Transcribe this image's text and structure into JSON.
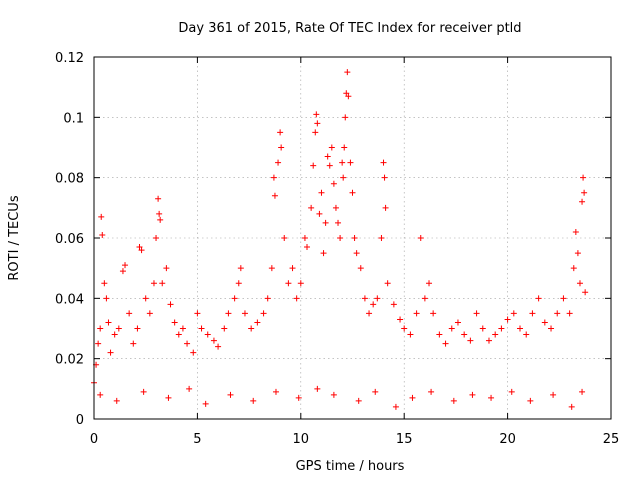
{
  "chart_data": {
    "type": "scatter",
    "title": "Day 361 of 2015, Rate Of TEC Index for receiver ptld",
    "xlabel": "GPS time / hours",
    "ylabel": "ROTI / TECUs",
    "xlim": [
      0,
      25
    ],
    "ylim": [
      0,
      0.12
    ],
    "xticks": [
      0,
      5,
      10,
      15,
      20,
      25
    ],
    "xtick_labels": [
      "0",
      "5",
      "10",
      "15",
      "20",
      "25"
    ],
    "yticks": [
      0,
      0.02,
      0.04,
      0.06,
      0.08,
      0.1,
      0.12
    ],
    "ytick_labels": [
      "0",
      "0.02",
      "0.04",
      "0.06",
      "0.08",
      "0.1",
      "0.12"
    ],
    "grid": true,
    "marker": "plus",
    "color": "#ff0000",
    "series": [
      {
        "name": "ROTI",
        "points": [
          [
            0.0,
            0.012
          ],
          [
            0.1,
            0.018
          ],
          [
            0.2,
            0.025
          ],
          [
            0.3,
            0.03
          ],
          [
            0.35,
            0.067
          ],
          [
            0.4,
            0.061
          ],
          [
            0.5,
            0.045
          ],
          [
            0.6,
            0.04
          ],
          [
            0.7,
            0.032
          ],
          [
            0.8,
            0.022
          ],
          [
            1.0,
            0.028
          ],
          [
            1.2,
            0.03
          ],
          [
            1.4,
            0.049
          ],
          [
            1.5,
            0.051
          ],
          [
            1.7,
            0.035
          ],
          [
            1.9,
            0.025
          ],
          [
            2.1,
            0.03
          ],
          [
            2.2,
            0.057
          ],
          [
            2.3,
            0.056
          ],
          [
            2.5,
            0.04
          ],
          [
            2.7,
            0.035
          ],
          [
            2.9,
            0.045
          ],
          [
            3.0,
            0.06
          ],
          [
            3.1,
            0.073
          ],
          [
            3.15,
            0.068
          ],
          [
            3.2,
            0.066
          ],
          [
            3.3,
            0.045
          ],
          [
            3.5,
            0.05
          ],
          [
            3.7,
            0.038
          ],
          [
            3.9,
            0.032
          ],
          [
            4.1,
            0.028
          ],
          [
            4.3,
            0.03
          ],
          [
            4.5,
            0.025
          ],
          [
            4.8,
            0.022
          ],
          [
            5.0,
            0.035
          ],
          [
            5.2,
            0.03
          ],
          [
            5.5,
            0.028
          ],
          [
            5.8,
            0.026
          ],
          [
            6.0,
            0.024
          ],
          [
            6.3,
            0.03
          ],
          [
            6.5,
            0.035
          ],
          [
            6.8,
            0.04
          ],
          [
            7.0,
            0.045
          ],
          [
            7.1,
            0.05
          ],
          [
            7.3,
            0.035
          ],
          [
            7.6,
            0.03
          ],
          [
            7.9,
            0.032
          ],
          [
            8.2,
            0.035
          ],
          [
            8.4,
            0.04
          ],
          [
            8.6,
            0.05
          ],
          [
            8.7,
            0.08
          ],
          [
            8.75,
            0.074
          ],
          [
            8.9,
            0.085
          ],
          [
            9.0,
            0.095
          ],
          [
            9.05,
            0.09
          ],
          [
            9.2,
            0.06
          ],
          [
            9.4,
            0.045
          ],
          [
            9.6,
            0.05
          ],
          [
            9.8,
            0.04
          ],
          [
            10.0,
            0.045
          ],
          [
            10.2,
            0.06
          ],
          [
            10.3,
            0.057
          ],
          [
            10.5,
            0.07
          ],
          [
            10.6,
            0.084
          ],
          [
            10.7,
            0.095
          ],
          [
            10.75,
            0.101
          ],
          [
            10.8,
            0.098
          ],
          [
            10.9,
            0.068
          ],
          [
            11.0,
            0.075
          ],
          [
            11.1,
            0.055
          ],
          [
            11.2,
            0.065
          ],
          [
            11.3,
            0.087
          ],
          [
            11.4,
            0.084
          ],
          [
            11.5,
            0.09
          ],
          [
            11.6,
            0.078
          ],
          [
            11.7,
            0.07
          ],
          [
            11.8,
            0.065
          ],
          [
            11.9,
            0.06
          ],
          [
            12.0,
            0.085
          ],
          [
            12.05,
            0.08
          ],
          [
            12.1,
            0.09
          ],
          [
            12.15,
            0.1
          ],
          [
            12.2,
            0.108
          ],
          [
            12.25,
            0.115
          ],
          [
            12.3,
            0.107
          ],
          [
            12.4,
            0.085
          ],
          [
            12.5,
            0.075
          ],
          [
            12.6,
            0.06
          ],
          [
            12.7,
            0.055
          ],
          [
            12.9,
            0.05
          ],
          [
            13.1,
            0.04
          ],
          [
            13.3,
            0.035
          ],
          [
            13.5,
            0.038
          ],
          [
            13.7,
            0.04
          ],
          [
            13.9,
            0.06
          ],
          [
            14.0,
            0.085
          ],
          [
            14.05,
            0.08
          ],
          [
            14.1,
            0.07
          ],
          [
            14.2,
            0.045
          ],
          [
            14.5,
            0.038
          ],
          [
            14.8,
            0.033
          ],
          [
            15.0,
            0.03
          ],
          [
            15.3,
            0.028
          ],
          [
            15.6,
            0.035
          ],
          [
            15.8,
            0.06
          ],
          [
            16.0,
            0.04
          ],
          [
            16.2,
            0.045
          ],
          [
            16.4,
            0.035
          ],
          [
            16.7,
            0.028
          ],
          [
            17.0,
            0.025
          ],
          [
            17.3,
            0.03
          ],
          [
            17.6,
            0.032
          ],
          [
            17.9,
            0.028
          ],
          [
            18.2,
            0.026
          ],
          [
            18.5,
            0.035
          ],
          [
            18.8,
            0.03
          ],
          [
            19.1,
            0.026
          ],
          [
            19.4,
            0.028
          ],
          [
            19.7,
            0.03
          ],
          [
            20.0,
            0.033
          ],
          [
            20.3,
            0.035
          ],
          [
            20.6,
            0.03
          ],
          [
            20.9,
            0.028
          ],
          [
            21.2,
            0.035
          ],
          [
            21.5,
            0.04
          ],
          [
            21.8,
            0.032
          ],
          [
            22.1,
            0.03
          ],
          [
            22.4,
            0.035
          ],
          [
            22.7,
            0.04
          ],
          [
            23.0,
            0.035
          ],
          [
            23.2,
            0.05
          ],
          [
            23.3,
            0.062
          ],
          [
            23.4,
            0.055
          ],
          [
            23.5,
            0.045
          ],
          [
            23.6,
            0.072
          ],
          [
            23.65,
            0.08
          ],
          [
            23.7,
            0.075
          ],
          [
            23.75,
            0.042
          ],
          [
            0.3,
            0.008
          ],
          [
            1.1,
            0.006
          ],
          [
            2.4,
            0.009
          ],
          [
            3.6,
            0.007
          ],
          [
            4.6,
            0.01
          ],
          [
            5.4,
            0.005
          ],
          [
            6.6,
            0.008
          ],
          [
            7.7,
            0.006
          ],
          [
            8.8,
            0.009
          ],
          [
            9.9,
            0.007
          ],
          [
            10.8,
            0.01
          ],
          [
            11.6,
            0.008
          ],
          [
            12.8,
            0.006
          ],
          [
            13.6,
            0.009
          ],
          [
            14.6,
            0.004
          ],
          [
            15.4,
            0.007
          ],
          [
            16.3,
            0.009
          ],
          [
            17.4,
            0.006
          ],
          [
            18.3,
            0.008
          ],
          [
            19.2,
            0.007
          ],
          [
            20.2,
            0.009
          ],
          [
            21.1,
            0.006
          ],
          [
            22.2,
            0.008
          ],
          [
            23.1,
            0.004
          ],
          [
            23.6,
            0.009
          ]
        ]
      }
    ]
  }
}
